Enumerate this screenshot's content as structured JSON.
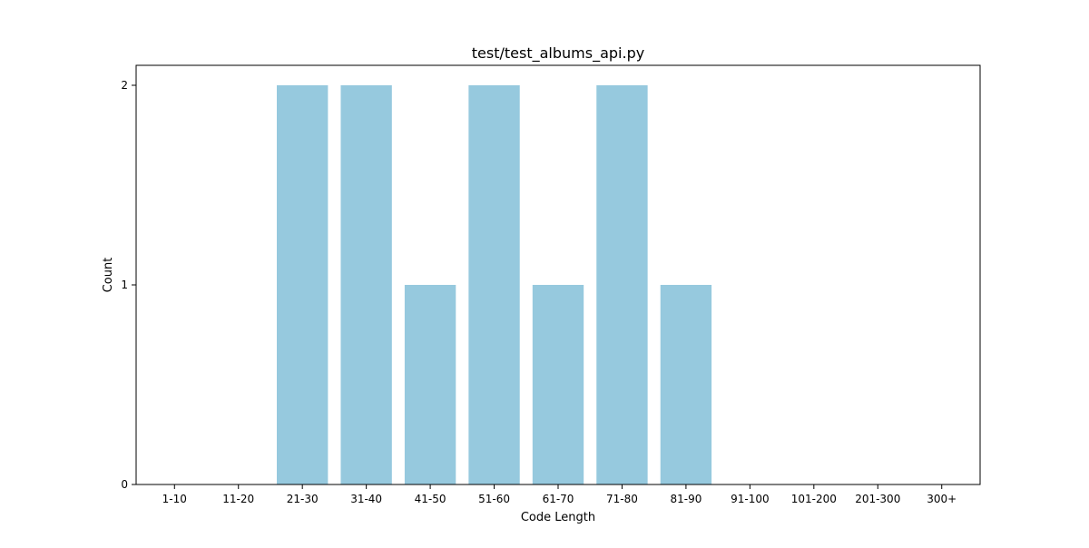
{
  "chart_data": {
    "type": "bar",
    "title": "test/test_albums_api.py",
    "xlabel": "Code Length",
    "ylabel": "Count",
    "categories": [
      "1-10",
      "11-20",
      "21-30",
      "31-40",
      "41-50",
      "51-60",
      "61-70",
      "71-80",
      "81-90",
      "91-100",
      "101-200",
      "201-300",
      "300+"
    ],
    "values": [
      0,
      0,
      2,
      2,
      1,
      2,
      1,
      2,
      1,
      0,
      0,
      0,
      0
    ],
    "yticks": [
      "0",
      "1",
      "2"
    ],
    "ylim": [
      0,
      2.1
    ],
    "grid": false,
    "legend": "none",
    "colors": {
      "bar": "#96c9de",
      "axis": "#000000",
      "background": "#ffffff"
    }
  }
}
